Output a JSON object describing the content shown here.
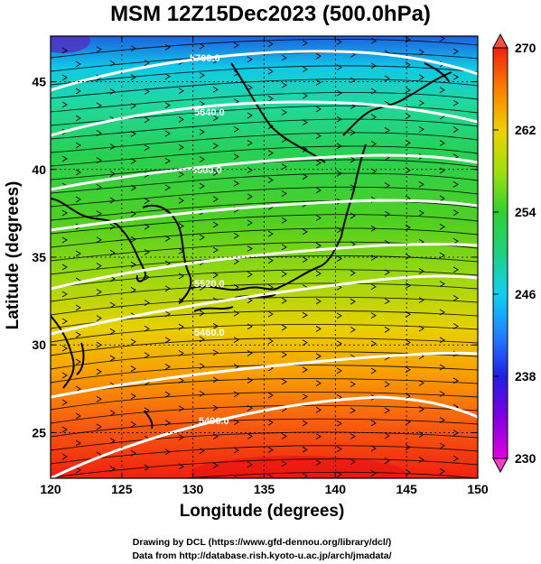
{
  "title": "MSM 12Z15Dec2023 (500.0hPa)",
  "x_axis": {
    "label": "Longitude (degrees)",
    "ticks": [
      "120",
      "125",
      "130",
      "135",
      "140",
      "145",
      "150"
    ]
  },
  "y_axis": {
    "label": "Latitude  (degrees)",
    "ticks": [
      "25",
      "30",
      "35",
      "40",
      "45"
    ]
  },
  "colorbar": {
    "ticks": [
      "230",
      "238",
      "246",
      "254",
      "262",
      "270"
    ]
  },
  "contour_labels": [
    "5700.0",
    "5700.0",
    "5640.0",
    "5640.0",
    "5640.0",
    "5640.0",
    "5580.0",
    "5580.0",
    "5580.0",
    "5580.0",
    "5520.0",
    "5520.0",
    "5520.0",
    "5460.0",
    "5460.0",
    "5460.0",
    "5400.0",
    "5400.0",
    "5400.0"
  ],
  "credits": {
    "line1": "Drawing by DCL (https://www.gfd-dennou.org/library/dcl/)",
    "line2": "Data from http://database.rish.kyoto-u.ac.jp/arch/jmadata/"
  },
  "chart_data": {
    "type": "heatmap",
    "title": "MSM 12Z15Dec2023 (500.0hPa)",
    "xlabel": "Longitude (degrees)",
    "ylabel": "Latitude  (degrees)",
    "xlim": [
      120,
      150
    ],
    "ylim": [
      22.4,
      47.6
    ],
    "x_ticks": [
      120,
      125,
      130,
      135,
      140,
      145,
      150
    ],
    "y_ticks": [
      25,
      30,
      35,
      40,
      45
    ],
    "colorbar_range": [
      230,
      270
    ],
    "colorbar_ticks": [
      230,
      238,
      246,
      254,
      262,
      270
    ],
    "grid": true,
    "contour_interval": 60,
    "contours": [
      {
        "value": 5400.0
      },
      {
        "value": 5460.0
      },
      {
        "value": 5520.0
      },
      {
        "value": 5580.0
      },
      {
        "value": 5640.0
      },
      {
        "value": 5700.0
      }
    ]
  }
}
